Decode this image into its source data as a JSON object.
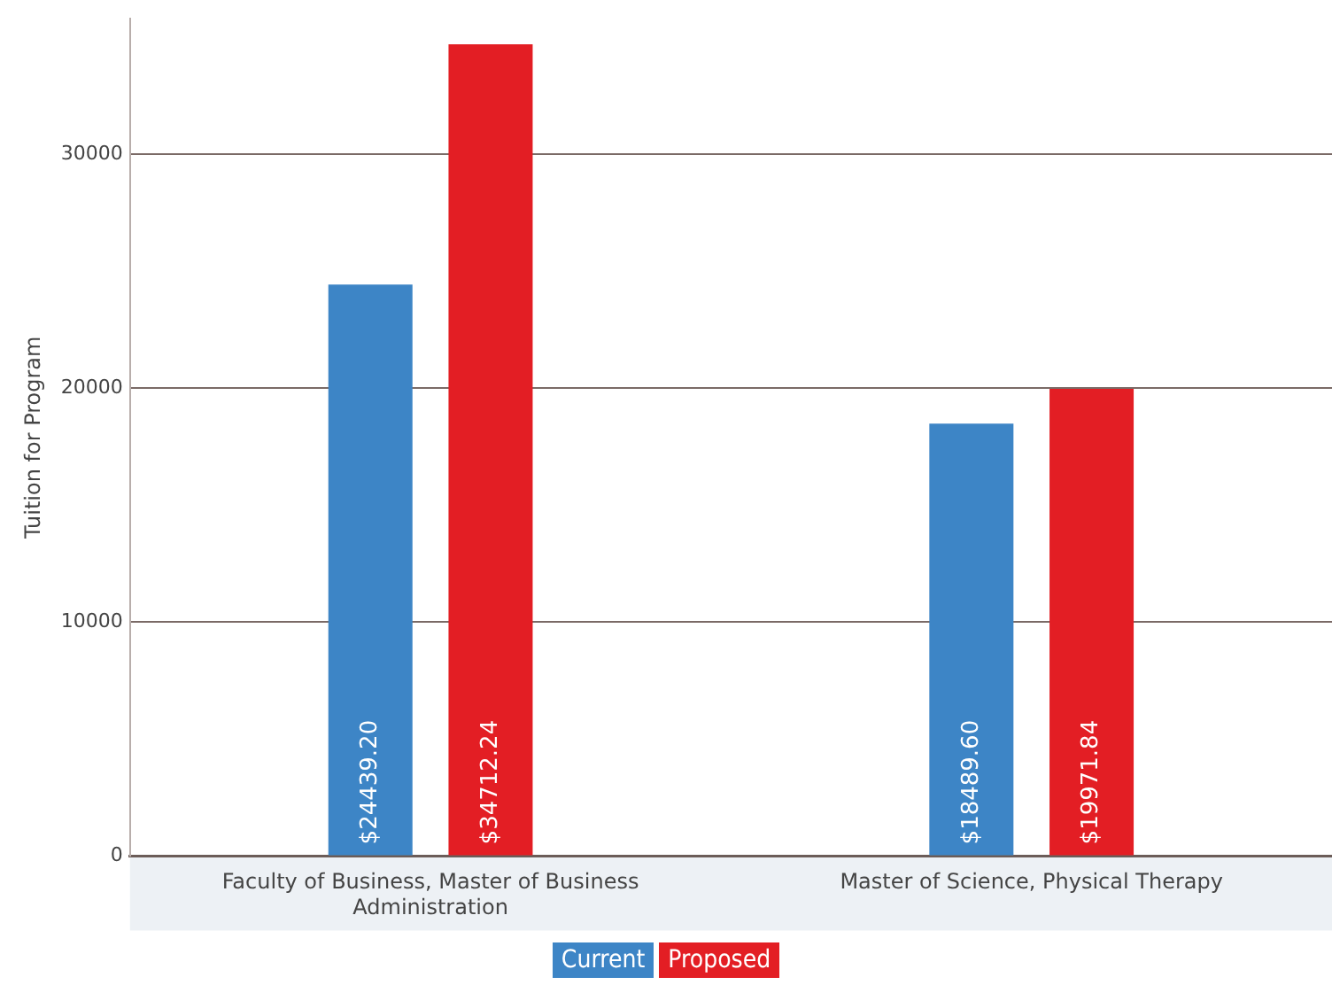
{
  "chart_data": {
    "type": "bar",
    "ylabel": "Tuition for Program",
    "categories": [
      "Faculty of Business, Master of Business Administration",
      "Master of Science, Physical Therapy"
    ],
    "series": [
      {
        "name": "Current",
        "color": "#3d85c6",
        "values": [
          24439.2,
          18489.6
        ],
        "value_labels": [
          "$24439.20",
          "$18489.60"
        ]
      },
      {
        "name": "Proposed",
        "color": "#e31e24",
        "values": [
          34712.24,
          19971.84
        ],
        "value_labels": [
          "$34712.24",
          "$19971.84"
        ]
      }
    ],
    "ylim": [
      0,
      35800
    ],
    "yticks": [
      0,
      10000,
      20000,
      30000
    ],
    "grid": "y",
    "legend": "bottom"
  }
}
